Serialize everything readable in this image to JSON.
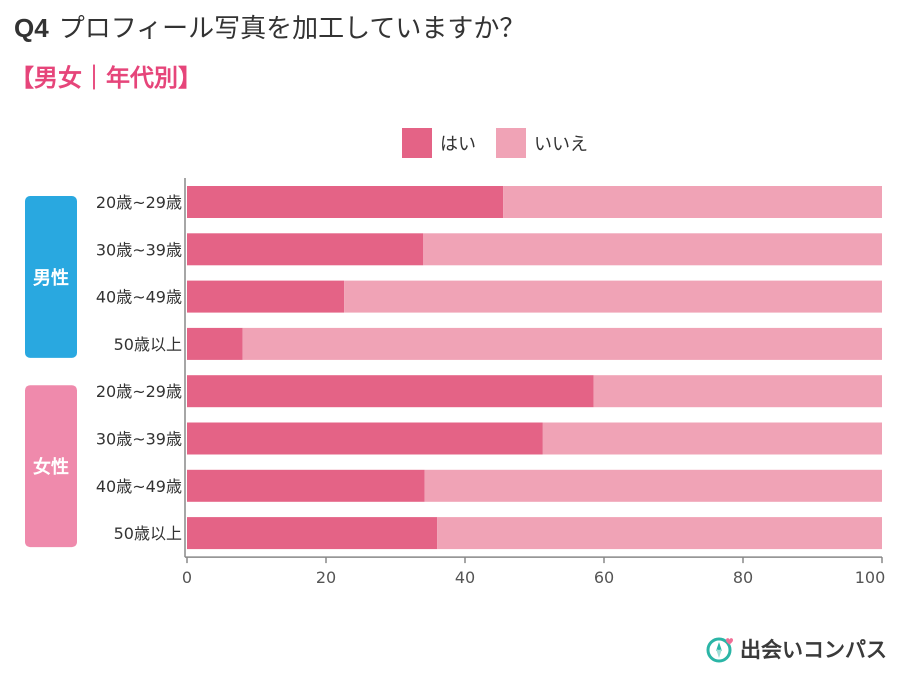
{
  "header": {
    "q_number": "Q4",
    "question": "プロフィール写真を加工していますか？",
    "subtitle": "【男女｜年代別】"
  },
  "groups": [
    {
      "label": "男性",
      "color": "#29a8e0"
    },
    {
      "label": "女性",
      "color": "#ef8aac"
    }
  ],
  "colors": {
    "yes": "#e46386",
    "no": "#f0a3b6",
    "axis": "#888888",
    "logo_teal": "#2bb5a6",
    "logo_pink": "#f06f97"
  },
  "logo": {
    "text": "出会いコンパス",
    "icon": "compass-heart-icon"
  },
  "chart_data": {
    "type": "bar",
    "orientation": "horizontal",
    "stacked": true,
    "categories": [
      "20歳~29歳",
      "30歳~39歳",
      "40歳~49歳",
      "50歳以上",
      "20歳~29歳",
      "30歳~39歳",
      "40歳~49歳",
      "50歳以上"
    ],
    "category_groups": [
      "男性",
      "男性",
      "男性",
      "男性",
      "女性",
      "女性",
      "女性",
      "女性"
    ],
    "series": [
      {
        "name": "はい",
        "values": [
          45.5,
          34,
          22.6,
          8,
          58.5,
          51.2,
          34.2,
          36
        ]
      },
      {
        "name": "いいえ",
        "values": [
          54.5,
          66,
          77.4,
          92,
          41.5,
          48.8,
          65.8,
          64
        ]
      }
    ],
    "xlim": [
      0,
      100
    ],
    "xticks": [
      0,
      20,
      40,
      60,
      80,
      100
    ],
    "legend_position": "top",
    "grid": false
  }
}
